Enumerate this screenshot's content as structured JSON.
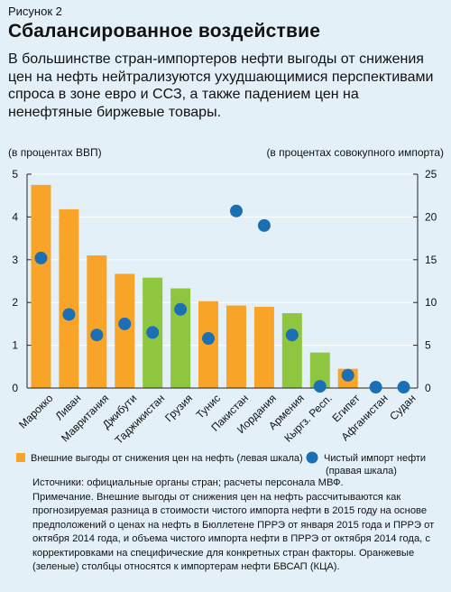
{
  "figure_label": "Рисунок 2",
  "title": "Сбалансированное воздействие",
  "subtitle": "В большинстве стран-импортеров нефти выгоды от снижения цен на нефть нейтрализуются ухудшающимися перспективами спроса в зоне евро и ССЗ, а также падением цен на ненефтяные биржевые товары.",
  "colors": {
    "orange": "#f7a428",
    "green": "#8ec63f",
    "dot": "#1a6fb5",
    "background": "#e4f0f8",
    "grid": "#ffffff"
  },
  "chart_data": {
    "type": "bar",
    "left_axis_unit": "(в процентах ВВП)",
    "right_axis_unit": "(в процентах совокупного импорта)",
    "ylim_left": [
      0,
      5
    ],
    "ylim_right": [
      0,
      25
    ],
    "left_ticks": [
      "0",
      "1",
      "2",
      "3",
      "4",
      "5"
    ],
    "right_ticks": [
      "0",
      "5",
      "10",
      "15",
      "20",
      "25"
    ],
    "categories": [
      "Марокко",
      "Ливан",
      "Мавритания",
      "Джибути",
      "Таджикистан",
      "Грузия",
      "Тунис",
      "Пакистан",
      "Иордания",
      "Армения",
      "Кыргз. Респ.",
      "Египет",
      "Афганистан",
      "Судан"
    ],
    "bar_colors": [
      "orange",
      "orange",
      "orange",
      "orange",
      "green",
      "green",
      "orange",
      "orange",
      "orange",
      "green",
      "green",
      "orange",
      "orange",
      "orange"
    ],
    "series": [
      {
        "name": "Внешние выгоды от снижения цен на нефть (левая шкала)",
        "kind": "bar",
        "axis": "left",
        "values": [
          4.75,
          4.18,
          3.1,
          2.67,
          2.58,
          2.33,
          2.03,
          1.93,
          1.9,
          1.75,
          0.83,
          0.45,
          0.0,
          0.0
        ]
      },
      {
        "name": "Чистый импорт нефти (правая шкала)",
        "kind": "dot",
        "axis": "right",
        "values": [
          15.2,
          8.6,
          6.2,
          7.5,
          6.5,
          9.2,
          5.8,
          20.7,
          19.0,
          6.2,
          0.2,
          1.5,
          0.1,
          0.1
        ]
      }
    ]
  },
  "legend": {
    "bar_label": "Внешние выгоды от снижения цен на нефть (левая шкала)",
    "dot_label_line1": "Чистый импорт нефти",
    "dot_label_line2": "(правая шкала)"
  },
  "notes": {
    "sources": "Источники: официальные органы стран; расчеты персонала МВФ.",
    "note": "Примечание. Внешние выгоды от снижения цен на нефть рассчитываются как прогнозируемая разница в стоимости чистого импорта нефти в 2015 году на основе предположений о ценах на нефть в Бюллетене ПРРЭ от января 2015 года и ПРРЭ от октября 2014 года, и объема чистого импорта нефти в ПРРЭ от октября 2014 года, с корректировками на специфические для конкретных стран факторы. Оранжевые (зеленые) столбцы относятся к импортерам нефти БВСАП (КЦА)."
  }
}
